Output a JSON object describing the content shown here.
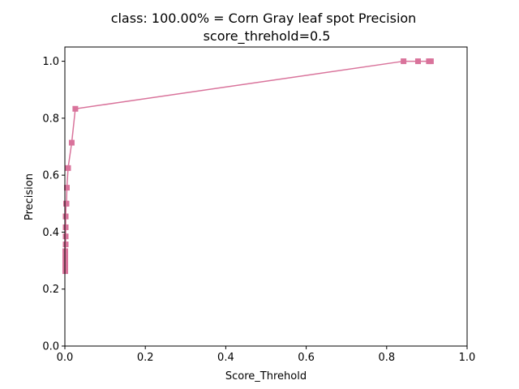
{
  "chart_data": {
    "type": "line",
    "title": "class: 100.00% = Corn Gray leaf spot Precision",
    "subtitle": "score_threhold=0.5",
    "xlabel": "Score_Threhold",
    "ylabel": "Precision",
    "xlim": [
      0.0,
      1.0
    ],
    "ylim": [
      0.0,
      1.05
    ],
    "xticks": [
      "0.0",
      "0.2",
      "0.4",
      "0.6",
      "0.8",
      "1.0"
    ],
    "yticks": [
      "0.0",
      "0.2",
      "0.4",
      "0.6",
      "0.8",
      "1.0"
    ],
    "grid": false,
    "marker": "square",
    "color": "#d9739b",
    "series": [
      {
        "x": [
          0.001,
          0.001,
          0.001,
          0.001,
          0.001,
          0.002,
          0.002,
          0.002,
          0.002,
          0.002,
          0.003,
          0.004,
          0.005,
          0.008,
          0.017,
          0.026,
          0.842,
          0.878,
          0.905,
          0.91
        ],
        "values": [
          0.263,
          0.278,
          0.294,
          0.313,
          0.333,
          0.357,
          0.385,
          0.417,
          0.455,
          0.455,
          0.5,
          0.5,
          0.556,
          0.625,
          0.714,
          0.833,
          1.0,
          1.0,
          1.0,
          1.0
        ]
      }
    ]
  }
}
